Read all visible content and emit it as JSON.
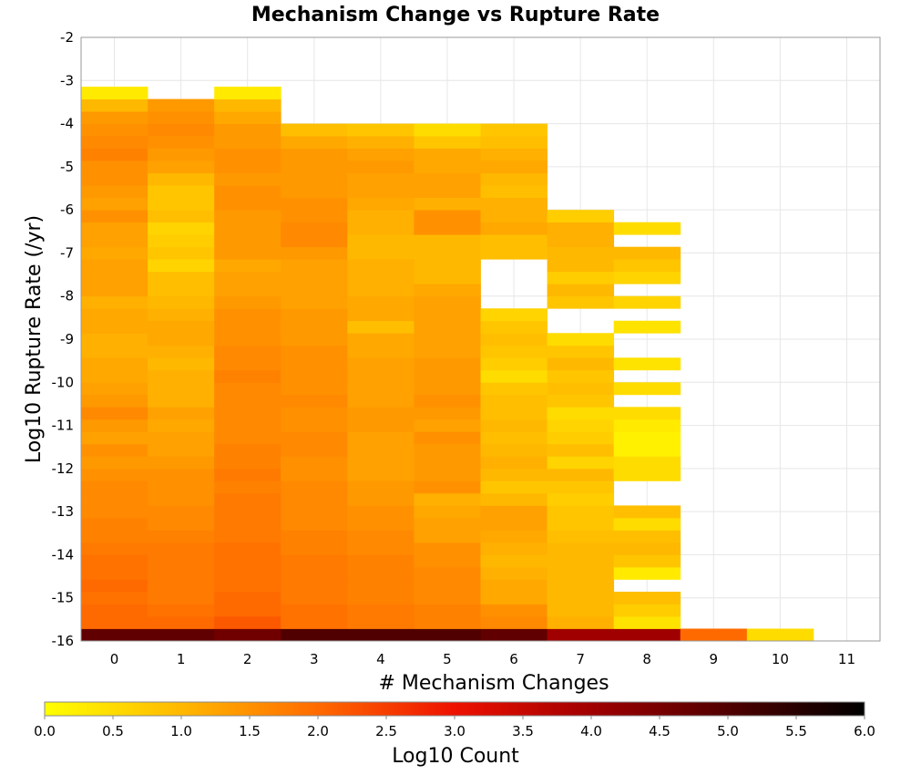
{
  "chart_data": {
    "type": "heatmap",
    "title": "Mechanism Change vs Rupture Rate",
    "xlabel": "# Mechanism Changes",
    "ylabel": "Log10 Rupture Rate (/yr)",
    "x_categories": [
      "0",
      "1",
      "2",
      "3",
      "4",
      "5",
      "6",
      "7",
      "8",
      "9",
      "10",
      "11"
    ],
    "x_values": [
      0,
      1,
      2,
      3,
      4,
      5,
      6,
      7,
      8,
      9,
      10,
      11
    ],
    "xlim": [
      -0.5,
      11.5
    ],
    "ylim": [
      -16,
      -2
    ],
    "y_ticks": [
      -2,
      -3,
      -4,
      -5,
      -6,
      -7,
      -8,
      -9,
      -10,
      -11,
      -12,
      -13,
      -14,
      -15,
      -16
    ],
    "y_tick_labels": [
      "-2",
      "-3",
      "-4",
      "-5",
      "-6",
      "-7",
      "-8",
      "-9",
      "-10",
      "-11",
      "-12",
      "-13",
      "-14",
      "-15",
      "-16"
    ],
    "bin_height": 0.2857,
    "grid": true,
    "colorbar": {
      "label": "Log10 Count",
      "range": [
        0,
        6
      ],
      "ticks": [
        0.0,
        0.5,
        1.0,
        1.5,
        2.0,
        2.5,
        3.0,
        3.5,
        4.0,
        4.5,
        5.0,
        5.5,
        6.0
      ],
      "tick_labels": [
        "0.0",
        "0.5",
        "1.0",
        "1.5",
        "2.0",
        "2.5",
        "3.0",
        "3.5",
        "4.0",
        "4.5",
        "5.0",
        "5.5",
        "6.0"
      ],
      "colors": [
        "#ffff00",
        "#ffb800",
        "#ff6a00",
        "#ee1100",
        "#a00000",
        "#500000",
        "#000000"
      ],
      "placement": "bottom"
    },
    "columns": [
      {
        "x": 0,
        "ymin": -16,
        "values": [
          4.8,
          2.0,
          2.0,
          1.9,
          2.0,
          1.9,
          1.9,
          1.8,
          1.7,
          1.7,
          1.6,
          1.6,
          1.6,
          1.5,
          1.4,
          1.5,
          1.3,
          1.4,
          1.6,
          1.4,
          1.3,
          1.2,
          1.2,
          1.1,
          1.1,
          1.2,
          1.2,
          1.1,
          1.3,
          1.3,
          1.3,
          1.2,
          1.3,
          1.3,
          1.5,
          1.3,
          1.4,
          1.5,
          1.5,
          1.7,
          1.6,
          1.5,
          1.4,
          1.0,
          0.3
        ]
      },
      {
        "x": 1,
        "ymin": -16,
        "values": [
          4.8,
          2.0,
          1.9,
          1.8,
          1.8,
          1.8,
          1.8,
          1.8,
          1.7,
          1.6,
          1.6,
          1.5,
          1.5,
          1.5,
          1.4,
          1.3,
          1.3,
          1.2,
          1.3,
          1.1,
          1.1,
          1.1,
          1.0,
          1.1,
          1.2,
          1.2,
          1.1,
          1.0,
          0.9,
          0.9,
          0.6,
          0.8,
          0.7,
          0.6,
          0.9,
          0.8,
          0.8,
          1.0,
          1.3,
          1.4,
          1.5,
          1.6,
          1.5,
          1.4
        ]
      },
      {
        "x": 2,
        "ymin": -16,
        "values": [
          4.6,
          2.2,
          2.0,
          2.0,
          1.9,
          1.9,
          1.9,
          1.9,
          1.8,
          1.8,
          1.8,
          1.8,
          1.7,
          1.8,
          1.7,
          1.7,
          1.6,
          1.6,
          1.6,
          1.6,
          1.6,
          1.7,
          1.6,
          1.6,
          1.5,
          1.5,
          1.5,
          1.4,
          1.3,
          1.3,
          1.2,
          1.4,
          1.4,
          1.4,
          1.4,
          1.5,
          1.5,
          1.4,
          1.5,
          1.5,
          1.4,
          1.4,
          1.2,
          1.0,
          0.3
        ]
      },
      {
        "x": 3,
        "ymin": -16,
        "values": [
          5.0,
          1.9,
          1.9,
          1.8,
          1.8,
          1.8,
          1.8,
          1.7,
          1.7,
          1.6,
          1.6,
          1.6,
          1.6,
          1.5,
          1.5,
          1.6,
          1.6,
          1.5,
          1.5,
          1.6,
          1.5,
          1.5,
          1.5,
          1.5,
          1.4,
          1.4,
          1.4,
          1.3,
          1.3,
          1.3,
          1.3,
          1.4,
          1.6,
          1.6,
          1.5,
          1.5,
          1.4,
          1.4,
          1.4,
          1.4,
          1.2,
          0.9
        ]
      },
      {
        "x": 4,
        "ymin": -16,
        "values": [
          5.0,
          1.8,
          1.8,
          1.7,
          1.7,
          1.7,
          1.7,
          1.6,
          1.6,
          1.5,
          1.5,
          1.4,
          1.4,
          1.3,
          1.3,
          1.3,
          1.3,
          1.4,
          1.4,
          1.3,
          1.3,
          1.3,
          1.3,
          1.2,
          1.2,
          0.9,
          1.2,
          1.2,
          1.1,
          1.1,
          1.1,
          1.0,
          1.0,
          1.1,
          1.1,
          1.2,
          1.3,
          1.3,
          1.4,
          1.3,
          1.1,
          0.8
        ]
      },
      {
        "x": 5,
        "ymin": -16,
        "values": [
          5.0,
          1.7,
          1.7,
          1.6,
          1.6,
          1.6,
          1.5,
          1.5,
          1.3,
          1.3,
          1.2,
          1.1,
          1.5,
          1.4,
          1.4,
          1.4,
          1.5,
          1.3,
          1.4,
          1.5,
          1.4,
          1.4,
          1.4,
          1.3,
          1.3,
          1.3,
          1.3,
          1.3,
          1.2,
          1.0,
          1.0,
          1.0,
          1.0,
          1.5,
          1.5,
          1.1,
          1.3,
          1.3,
          1.2,
          1.2,
          0.8,
          0.5
        ]
      },
      {
        "x": 6,
        "ymin": -16,
        "values": [
          4.8,
          1.6,
          1.5,
          1.2,
          1.2,
          1.1,
          1.0,
          1.1,
          1.2,
          1.3,
          1.3,
          1.0,
          0.8,
          1.0,
          1.1,
          1.0,
          0.9,
          1.0,
          0.9,
          0.9,
          0.8,
          0.5,
          0.7,
          0.8,
          0.9,
          0.8,
          0.6,
          null,
          null,
          null,
          null,
          0.9,
          0.9,
          1.2,
          1.1,
          1.1,
          0.9,
          1.0,
          1.2,
          1.1,
          0.9,
          0.8
        ]
      },
      {
        "x": 7,
        "ymin": -16,
        "values": [
          4.0,
          1.1,
          1.0,
          1.0,
          1.0,
          1.0,
          1.0,
          1.0,
          0.9,
          0.8,
          0.8,
          0.7,
          0.8,
          1.0,
          0.6,
          0.9,
          0.7,
          0.6,
          0.5,
          0.8,
          0.9,
          0.8,
          1.0,
          0.8,
          0.5,
          null,
          null,
          0.8,
          1.0,
          0.7,
          1.0,
          1.0,
          1.1,
          1.1,
          0.7
        ]
      },
      {
        "x": 8,
        "ymin": -16,
        "values": [
          4.0,
          0.4,
          0.7,
          0.9,
          null,
          0.3,
          0.8,
          1.0,
          0.9,
          0.5,
          0.9,
          null,
          null,
          0.5,
          0.5,
          0.2,
          0.2,
          0.3,
          0.5,
          null,
          0.5,
          null,
          0.4,
          null,
          null,
          0.4,
          null,
          0.6,
          null,
          0.6,
          0.8,
          1.0,
          null,
          0.5
        ]
      },
      {
        "x": 9,
        "ymin": -16,
        "values": [
          2.0
        ]
      },
      {
        "x": 10,
        "ymin": -16,
        "values": [
          0.5
        ]
      }
    ]
  }
}
